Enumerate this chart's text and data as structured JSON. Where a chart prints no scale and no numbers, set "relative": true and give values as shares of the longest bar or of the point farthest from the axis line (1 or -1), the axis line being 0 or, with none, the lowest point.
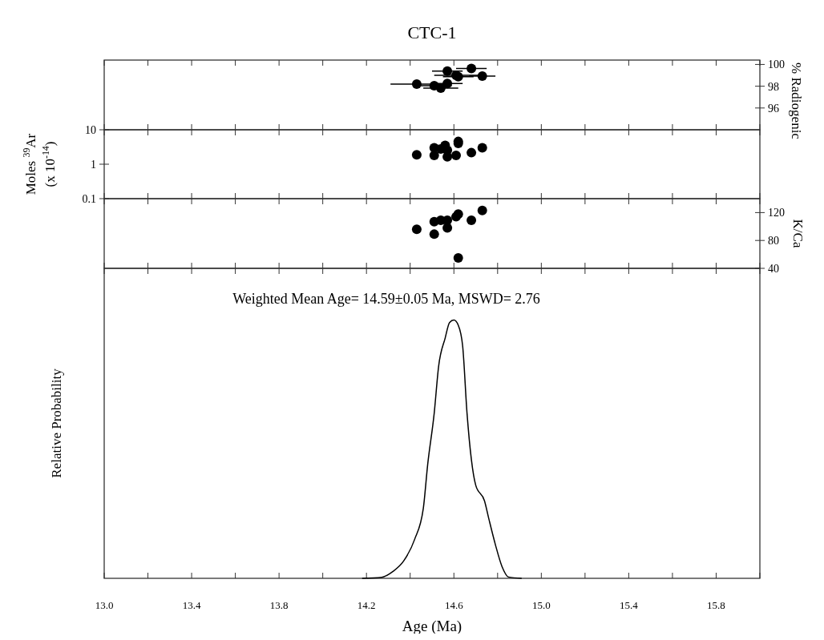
{
  "chart_data": [
    {
      "type": "scatter",
      "title": "CTC-1",
      "y2label": "% Radiogenic",
      "x": [
        14.57,
        14.68,
        14.61,
        14.62,
        14.73,
        14.43,
        14.51,
        14.54,
        14.57
      ],
      "xlim": [
        13,
        16
      ],
      "xticks": [
        {
          "value": 13.0,
          "label": null
        },
        {
          "value": 13.2,
          "label": null
        },
        {
          "value": 13.4,
          "label": null
        },
        {
          "value": 13.6,
          "label": null
        },
        {
          "value": 13.8,
          "label": null
        },
        {
          "value": 14.0,
          "label": null
        },
        {
          "value": 14.2,
          "label": null
        },
        {
          "value": 14.4,
          "label": null
        },
        {
          "value": 14.6,
          "label": null
        },
        {
          "value": 14.8,
          "label": null
        },
        {
          "value": 15.0,
          "label": null
        },
        {
          "value": 15.2,
          "label": null
        },
        {
          "value": 15.4,
          "label": null
        },
        {
          "value": 15.6,
          "label": null
        },
        {
          "value": 15.8,
          "label": null
        },
        {
          "value": 16.0,
          "label": null
        }
      ],
      "y2lim": [
        94,
        100.4
      ],
      "y2ticks": [
        96,
        98,
        100
      ],
      "tick_labels": "y",
      "marker": "circle",
      "series": [
        {
          "color": "#000000",
          "axis": "y2",
          "values": [
            99.38,
            99.63,
            99.0,
            98.88,
            98.93,
            98.2,
            98.05,
            97.83,
            98.25
          ],
          "xerrors": [
            0.07,
            0.07,
            0.1,
            0.07,
            0.06,
            0.12,
            0.08,
            0.08,
            0.07
          ]
        }
      ]
    },
    {
      "type": "scatter",
      "ylabel": "Moles $^{39}$Ar (x 10$^{-14}$)",
      "log": "y",
      "x": [
        14.43,
        14.51,
        14.51,
        14.54,
        14.56,
        14.57,
        14.57,
        14.61,
        14.62,
        14.62,
        14.68,
        14.73
      ],
      "xlim": [
        13,
        16
      ],
      "xticks": [
        {
          "value": 13.0,
          "label": null
        },
        {
          "value": 13.2,
          "label": null
        },
        {
          "value": 13.4,
          "label": null
        },
        {
          "value": 13.6,
          "label": null
        },
        {
          "value": 13.8,
          "label": null
        },
        {
          "value": 14.0,
          "label": null
        },
        {
          "value": 14.2,
          "label": null
        },
        {
          "value": 14.4,
          "label": null
        },
        {
          "value": 14.6,
          "label": null
        },
        {
          "value": 14.8,
          "label": null
        },
        {
          "value": 15.0,
          "label": null
        },
        {
          "value": 15.2,
          "label": null
        },
        {
          "value": 15.4,
          "label": null
        },
        {
          "value": 15.6,
          "label": null
        },
        {
          "value": 15.8,
          "label": null
        },
        {
          "value": 16.0,
          "label": null
        }
      ],
      "ylim": [
        0.1,
        10
      ],
      "yticks": [
        0.1,
        1,
        10
      ],
      "tick_labels": "y",
      "marker": "circle",
      "series": [
        {
          "color": "#000000",
          "values": [
            1.87,
            3.0,
            1.8,
            2.76,
            3.5,
            2.54,
            1.65,
            1.8,
            4.0,
            4.57,
            2.16,
            3.0
          ]
        }
      ]
    },
    {
      "type": "scatter",
      "y2label": "K/Ca",
      "x": [
        14.43,
        14.51,
        14.51,
        14.54,
        14.57,
        14.57,
        14.61,
        14.62,
        14.68,
        14.73,
        14.62
      ],
      "xlim": [
        13,
        16
      ],
      "xticks": [
        {
          "value": 13.0,
          "label": null
        },
        {
          "value": 13.2,
          "label": null
        },
        {
          "value": 13.4,
          "label": null
        },
        {
          "value": 13.6,
          "label": null
        },
        {
          "value": 13.8,
          "label": null
        },
        {
          "value": 14.0,
          "label": null
        },
        {
          "value": 14.2,
          "label": null
        },
        {
          "value": 14.4,
          "label": null
        },
        {
          "value": 14.6,
          "label": null
        },
        {
          "value": 14.8,
          "label": null
        },
        {
          "value": 15.0,
          "label": null
        },
        {
          "value": 15.2,
          "label": null
        },
        {
          "value": 15.4,
          "label": null
        },
        {
          "value": 15.6,
          "label": null
        },
        {
          "value": 15.8,
          "label": null
        },
        {
          "value": 16.0,
          "label": null
        }
      ],
      "y2lim": [
        40,
        140
      ],
      "y2ticks": [
        40,
        80,
        120
      ],
      "tick_labels": "y",
      "marker": "circle",
      "series": [
        {
          "color": "#000000",
          "axis": "y2",
          "values": [
            96,
            107,
            89,
            109,
            109,
            98,
            114,
            118,
            109,
            123,
            55
          ]
        }
      ]
    },
    {
      "type": "line",
      "xlabel": "Age (Ma)",
      "ylabel": "Relative Probability",
      "relative": true,
      "annotations": [
        "Weighted Mean Age= 14.59±0.05 Ma, MSWD= 2.76"
      ],
      "xlim": [
        13,
        16
      ],
      "xticks": [
        {
          "value": 13.0,
          "label": "13.0"
        },
        {
          "value": 13.2,
          "label": null
        },
        13.4,
        {
          "value": 13.6,
          "label": null
        },
        13.8,
        {
          "value": 14.0,
          "label": null
        },
        14.2,
        {
          "value": 14.4,
          "label": null
        },
        14.6,
        {
          "value": 14.8,
          "label": null
        },
        {
          "value": 15.0,
          "label": "15.0"
        },
        {
          "value": 15.2,
          "label": null
        },
        15.4,
        {
          "value": 15.6,
          "label": null
        },
        15.8,
        {
          "value": 16.0,
          "label": null
        }
      ],
      "tick_labels": "x",
      "line_style": "solid",
      "x": [
        14.18,
        14.27,
        14.32,
        14.37,
        14.42,
        14.46,
        14.48,
        14.51,
        14.53,
        14.56,
        14.58,
        14.6,
        14.62,
        14.64,
        14.66,
        14.68,
        14.7,
        14.74,
        14.76,
        14.79,
        14.82,
        14.85,
        14.91
      ],
      "series": [
        {
          "color": "#000000",
          "values": [
            0,
            0.004,
            0.026,
            0.067,
            0.15,
            0.27,
            0.44,
            0.64,
            0.82,
            0.93,
            0.99,
            1,
            0.98,
            0.9,
            0.64,
            0.46,
            0.36,
            0.3,
            0.23,
            0.13,
            0.046,
            0.005,
            0
          ]
        }
      ]
    }
  ]
}
